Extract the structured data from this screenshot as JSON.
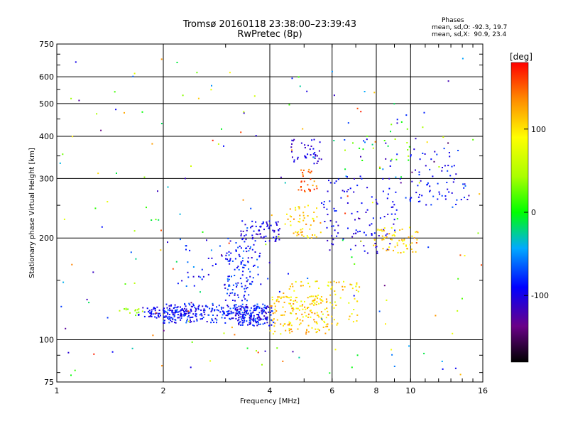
{
  "header": {
    "title": "Tromsø 20160118 23:38:00–23:39:43",
    "subtitle": "RwPretec (8p)"
  },
  "phase_info": {
    "heading": "Phases",
    "line_o": "mean, sd,O: -92.3, 19.7",
    "line_x": "mean, sd,X:  90.9, 23.4"
  },
  "colorbar": {
    "label": "[deg]",
    "ticks": [
      {
        "value": 100,
        "text": "100"
      },
      {
        "value": 0,
        "text": "0"
      },
      {
        "value": -100,
        "text": "-100"
      }
    ],
    "range": [
      -180,
      180
    ]
  },
  "chart_data": {
    "type": "scatter",
    "title": "Tromsø 20160118 23:38:00–23:39:43",
    "subtitle": "RwPretec (8p)",
    "xlabel": "Frequency [MHz]",
    "ylabel": "Stationary phase Virtual Height [km]",
    "xscale": "log",
    "yscale": "log",
    "xlim": [
      1,
      16
    ],
    "ylim": [
      75,
      750
    ],
    "xticks": [
      {
        "value": 1,
        "text": "1"
      },
      {
        "value": 2,
        "text": "2"
      },
      {
        "value": 4,
        "text": "4"
      },
      {
        "value": 6,
        "text": "6"
      },
      {
        "value": 8,
        "text": "8"
      },
      {
        "value": 10,
        "text": "10"
      },
      {
        "value": 16,
        "text": "16"
      }
    ],
    "yticks": [
      {
        "value": 75,
        "text": "75"
      },
      {
        "value": 100,
        "text": "100"
      },
      {
        "value": 200,
        "text": "200"
      },
      {
        "value": 300,
        "text": "300"
      },
      {
        "value": 400,
        "text": "400"
      },
      {
        "value": 500,
        "text": "500"
      },
      {
        "value": 600,
        "text": "600"
      },
      {
        "value": 750,
        "text": "750"
      }
    ],
    "gridlines_x": [
      2,
      4,
      6,
      8,
      10
    ],
    "gridlines_y": [
      100,
      200,
      300,
      400,
      500,
      600
    ],
    "grid": true,
    "colorscale": "rainbow (phase in degrees)",
    "clusters": [
      {
        "f": [
          1.7,
          2.4
        ],
        "h": [
          116,
          125
        ],
        "phase": [
          -115,
          -80
        ],
        "n": 90
      },
      {
        "f": [
          2.0,
          3.9
        ],
        "h": [
          112,
          128
        ],
        "phase": [
          -110,
          -60
        ],
        "n": 260
      },
      {
        "f": [
          3.2,
          4.1
        ],
        "h": [
          110,
          126
        ],
        "phase": [
          -120,
          -70
        ],
        "n": 110
      },
      {
        "f": [
          1.5,
          1.75
        ],
        "h": [
          118,
          124
        ],
        "phase": [
          20,
          60
        ],
        "n": 14
      },
      {
        "f": [
          3.0,
          3.6
        ],
        "h": [
          130,
          190
        ],
        "phase": [
          -110,
          -60
        ],
        "n": 80
      },
      {
        "f": [
          3.3,
          4.3
        ],
        "h": [
          195,
          225
        ],
        "phase": [
          -120,
          -80
        ],
        "n": 70
      },
      {
        "f": [
          2.2,
          4.0
        ],
        "h": [
          140,
          200
        ],
        "phase": [
          -110,
          -50
        ],
        "n": 70
      },
      {
        "f": [
          4.0,
          5.9
        ],
        "h": [
          104,
          135
        ],
        "phase": [
          80,
          140
        ],
        "n": 150
      },
      {
        "f": [
          4.3,
          7.2
        ],
        "h": [
          110,
          150
        ],
        "phase": [
          70,
          130
        ],
        "n": 90
      },
      {
        "f": [
          4.4,
          5.6
        ],
        "h": [
          200,
          250
        ],
        "phase": [
          80,
          140
        ],
        "n": 55
      },
      {
        "f": [
          4.6,
          5.6
        ],
        "h": [
          330,
          395
        ],
        "phase": [
          -120,
          -90
        ],
        "n": 40
      },
      {
        "f": [
          4.8,
          5.5
        ],
        "h": [
          270,
          320
        ],
        "phase": [
          120,
          170
        ],
        "n": 30
      },
      {
        "f": [
          5.6,
          9.2
        ],
        "h": [
          180,
          300
        ],
        "phase": [
          -115,
          -80
        ],
        "n": 110
      },
      {
        "f": [
          7.8,
          10.5
        ],
        "h": [
          180,
          215
        ],
        "phase": [
          80,
          130
        ],
        "n": 60
      },
      {
        "f": [
          9.8,
          14.5
        ],
        "h": [
          250,
          370
        ],
        "phase": [
          -110,
          -70
        ],
        "n": 70
      },
      {
        "f": [
          6.5,
          10.0
        ],
        "h": [
          300,
          450
        ],
        "phase": [
          -120,
          60
        ],
        "n": 40
      },
      {
        "f": [
          1.0,
          16.0
        ],
        "h": [
          78,
          700
        ],
        "phase": [
          -150,
          170
        ],
        "n": 200
      }
    ]
  }
}
